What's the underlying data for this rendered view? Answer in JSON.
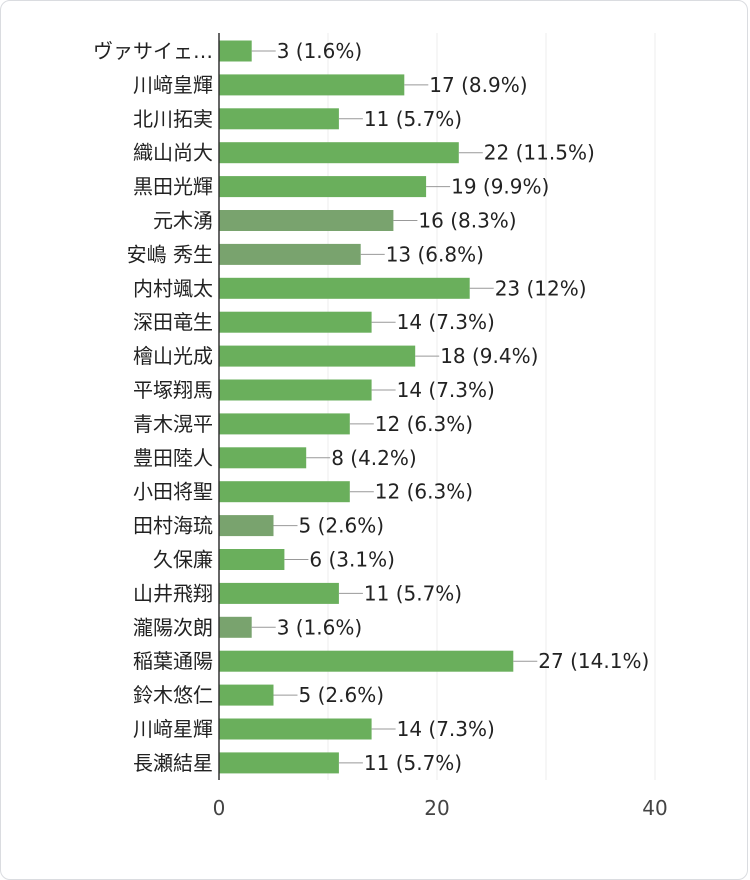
{
  "chart_data": {
    "type": "bar",
    "orientation": "horizontal",
    "categories": [
      "ヴァサイェ…",
      "川﨑皇輝",
      "北川拓実",
      "織山尚大",
      "黒田光輝",
      "元木湧",
      "安嶋 秀生",
      "内村颯太",
      "深田竜生",
      "檜山光成",
      "平塚翔馬",
      "青木滉平",
      "豊田陸人",
      "小田将聖",
      "田村海琉",
      "久保廉",
      "山井飛翔",
      "瀧陽次朗",
      "稲葉通陽",
      "鈴木悠仁",
      "川﨑星輝",
      "長瀬結星"
    ],
    "values": [
      3,
      17,
      11,
      22,
      19,
      16,
      13,
      23,
      14,
      18,
      14,
      12,
      8,
      12,
      5,
      6,
      11,
      3,
      27,
      5,
      14,
      11
    ],
    "labels": [
      "3 (1.6%)",
      "17 (8.9%)",
      "11 (5.7%)",
      "22 (11.5%)",
      "19 (9.9%)",
      "16 (8.3%)",
      "13 (6.8%)",
      "23 (12%)",
      "14 (7.3%)",
      "18 (9.4%)",
      "14 (7.3%)",
      "12 (6.3%)",
      "8 (4.2%)",
      "12 (6.3%)",
      "5 (2.6%)",
      "6 (3.1%)",
      "11 (5.7%)",
      "3 (1.6%)",
      "27 (14.1%)",
      "5 (2.6%)",
      "14 (7.3%)",
      "11 (5.7%)"
    ],
    "highlighted": [
      5,
      6,
      14,
      17
    ],
    "xlim": [
      0,
      40
    ],
    "xticks": [
      "0",
      "20",
      "40"
    ],
    "grid": true,
    "colors": {
      "bar": "#6aaf5c",
      "bar_muted": "#79a36e",
      "grid": "#ececec",
      "axis": "#333333"
    }
  }
}
